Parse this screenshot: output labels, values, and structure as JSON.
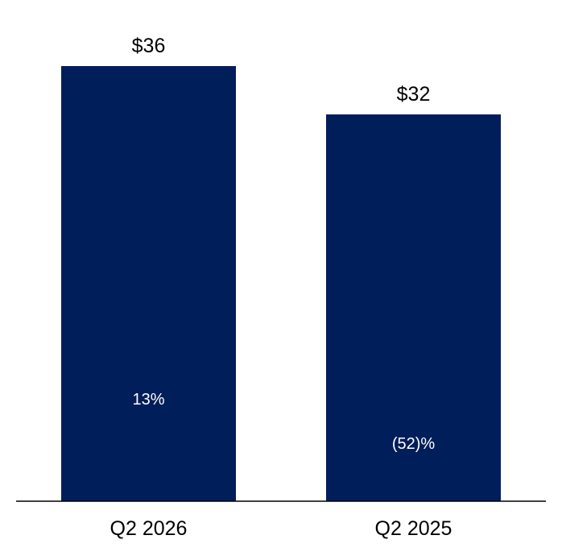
{
  "chart_data": {
    "type": "bar",
    "categories": [
      "Q2 2026",
      "Q2 2025"
    ],
    "values": [
      36,
      32
    ],
    "value_labels": [
      "$36",
      "$32"
    ],
    "inner_labels": [
      "13%",
      "(52)%"
    ],
    "ylim": [
      0,
      36
    ],
    "grid": false,
    "legend": "none",
    "title": "",
    "xlabel": "",
    "ylabel": ""
  },
  "colors": {
    "bar": "#001e5a",
    "baseline": "#000000",
    "inner_text": "#ffffff",
    "label_text": "#000000"
  }
}
